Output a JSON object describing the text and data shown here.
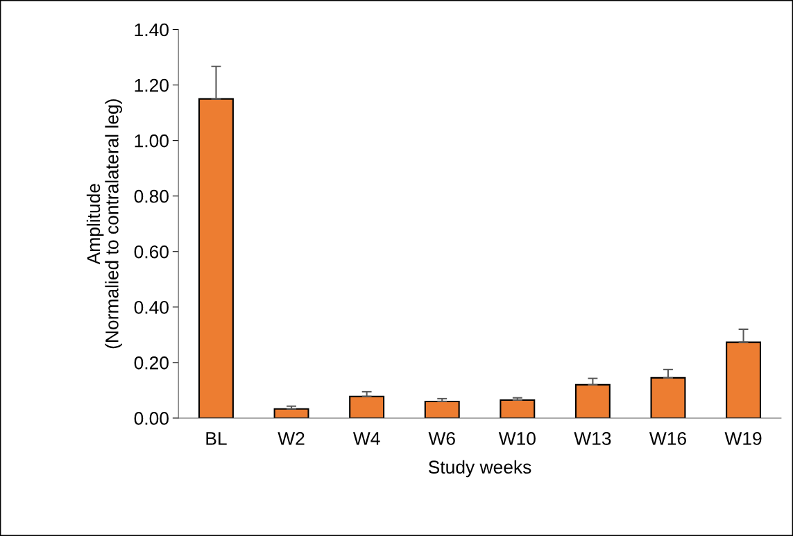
{
  "chart_data": {
    "type": "bar",
    "xlabel": "Study weeks",
    "ylabel": "Amplitude\n(Normalied to contralateral leg)",
    "categories": [
      "BL",
      "W2",
      "W4",
      "W6",
      "W10",
      "W13",
      "W16",
      "W19"
    ],
    "values": [
      1.15,
      0.033,
      0.078,
      0.06,
      0.065,
      0.12,
      0.145,
      0.273
    ],
    "errors": [
      [
        1.15,
        1.267
      ],
      [
        0.033,
        0.043
      ],
      [
        0.078,
        0.095
      ],
      [
        0.06,
        0.07
      ],
      [
        0.065,
        0.073
      ],
      [
        0.12,
        0.143
      ],
      [
        0.145,
        0.175
      ],
      [
        0.273,
        0.32
      ]
    ],
    "color": "#ed7d31",
    "ylim": [
      0,
      1.4
    ],
    "yticks": [
      {
        "value": 0,
        "label": "0.00"
      },
      {
        "value": 0.2,
        "label": "0.20"
      },
      {
        "value": 0.4,
        "label": "0.40"
      },
      {
        "value": 0.6,
        "label": "0.60"
      },
      {
        "value": 0.8,
        "label": "0.80"
      },
      {
        "value": 1.0,
        "label": "1.00"
      },
      {
        "value": 1.2,
        "label": "1.20"
      },
      {
        "value": 1.4,
        "label": "1.40"
      }
    ],
    "grid": false,
    "legend": false
  }
}
